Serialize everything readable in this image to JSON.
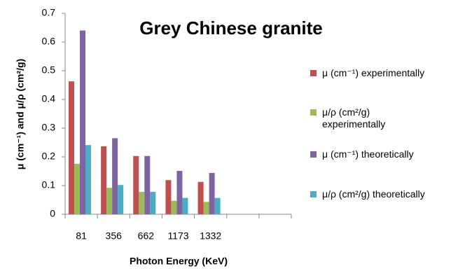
{
  "chart_data": {
    "type": "bar",
    "title": "Grey Chinese granite",
    "x_label": "Photon Energy (KeV)",
    "y_label": "μ (cm⁻¹) and μ/ρ (cm²/g)",
    "categories": [
      "81",
      "356",
      "662",
      "1173",
      "1332",
      null,
      null
    ],
    "series": [
      {
        "name": "μ (cm⁻¹) experimentally",
        "color": "#c0504d",
        "values": [
          0.463,
          0.237,
          0.203,
          0.119,
          0.113,
          null,
          null
        ]
      },
      {
        "name": "μ/ρ (cm²/g) experimentally",
        "color": "#9bbb59",
        "values": [
          0.176,
          0.092,
          0.078,
          0.047,
          0.043,
          null,
          null
        ]
      },
      {
        "name": "μ (cm⁻¹) theoretically",
        "color": "#8064a2",
        "values": [
          0.64,
          0.265,
          0.203,
          0.151,
          0.144,
          null,
          null
        ]
      },
      {
        "name": "μ/ρ (cm²/g) theoretically",
        "color": "#4bacc6",
        "values": [
          0.241,
          0.102,
          0.078,
          0.057,
          0.057,
          null,
          null
        ]
      }
    ],
    "ylim": [
      0,
      0.7
    ],
    "yticks": [
      0,
      0.1,
      0.2,
      0.3,
      0.4,
      0.5,
      0.6,
      0.7
    ],
    "grid": false,
    "legend": "right"
  }
}
